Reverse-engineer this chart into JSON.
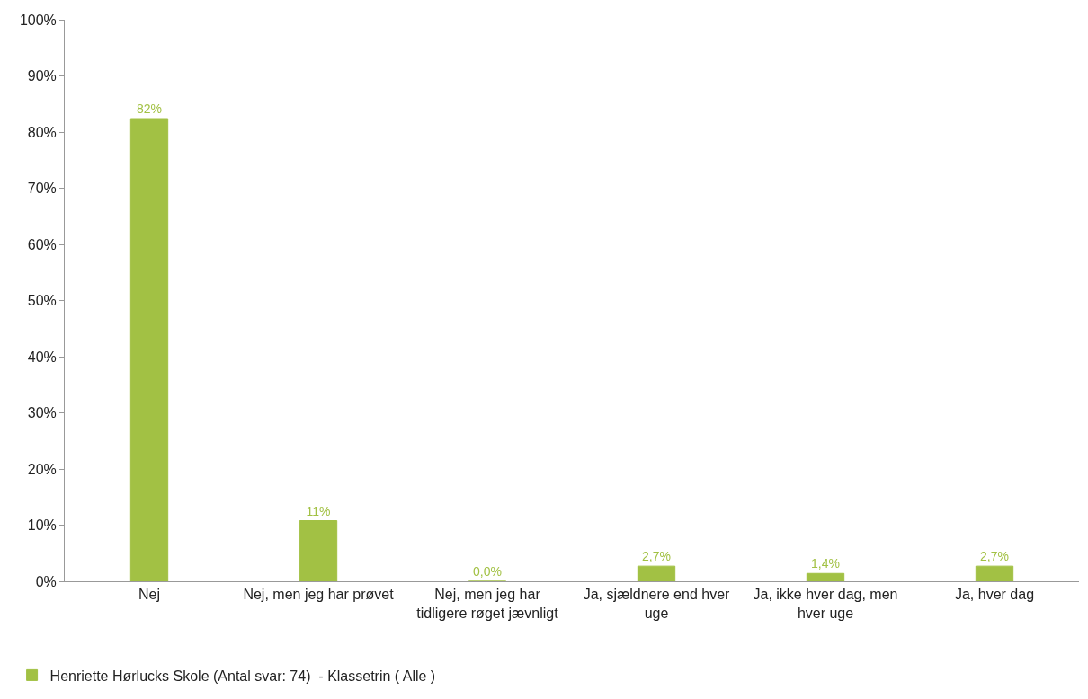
{
  "chart_data": {
    "type": "bar",
    "categories": [
      "Nej",
      "Nej, men jeg har prøvet",
      "Nej, men jeg har tidligere røget jævnligt",
      "Ja, sjældnere end hver uge",
      "Ja, ikke hver dag, men hver uge",
      "Ja, hver dag"
    ],
    "series": [
      {
        "name": "Henriette Hørlucks Skole (Antal svar: 74)  - Klassetrin ( Alle )",
        "color": "#a2c144",
        "values": [
          82.4,
          10.8,
          0.0,
          2.7,
          1.4,
          2.7
        ],
        "value_labels": [
          "82%",
          "11%",
          "0,0%",
          "2,7%",
          "1,4%",
          "2,7%"
        ]
      }
    ],
    "ylim": [
      0,
      100
    ],
    "yticks": [
      {
        "value": 0,
        "label": "0%"
      },
      {
        "value": 10,
        "label": "10%"
      },
      {
        "value": 20,
        "label": "20%"
      },
      {
        "value": 30,
        "label": "30%"
      },
      {
        "value": 40,
        "label": "40%"
      },
      {
        "value": 50,
        "label": "50%"
      },
      {
        "value": 60,
        "label": "60%"
      },
      {
        "value": 70,
        "label": "70%"
      },
      {
        "value": 80,
        "label": "80%"
      },
      {
        "value": 90,
        "label": "90%"
      },
      {
        "value": 100,
        "label": "100%"
      }
    ],
    "legend": "bottom left"
  }
}
